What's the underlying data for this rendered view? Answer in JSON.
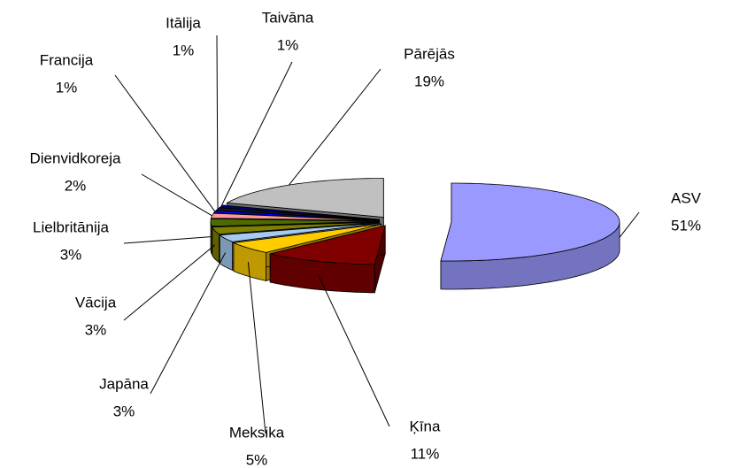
{
  "chart_data": {
    "type": "pie",
    "categories": [
      "ASV",
      "Ķīna",
      "Meksika",
      "Japāna",
      "Vācija",
      "Lielbritānija",
      "Dienvidkoreja",
      "Francija",
      "Itālija",
      "Taivāna",
      "Pārējās"
    ],
    "values": [
      51,
      11,
      5,
      3,
      3,
      3,
      2,
      1,
      1,
      1,
      19
    ],
    "value_labels": [
      "51%",
      "11%",
      "5%",
      "3%",
      "3%",
      "3%",
      "2%",
      "1%",
      "1%",
      "1%",
      "19%"
    ],
    "colors": [
      "#9999ff",
      "#800000",
      "#ffcc00",
      "#a6caf0",
      "#808000",
      "#4d6b00",
      "#ff9999",
      "#0000ff",
      "#1a1a1a",
      "#000080",
      "#c0c0c0"
    ],
    "three_d": true
  }
}
